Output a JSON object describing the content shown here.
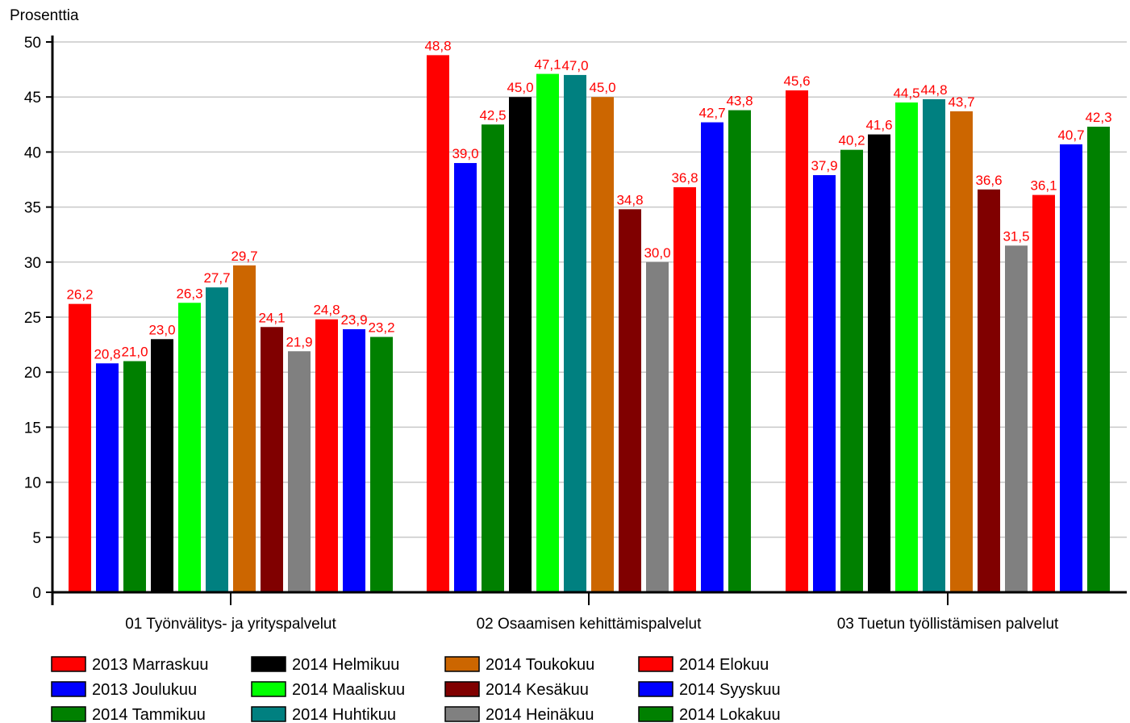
{
  "chart_data": {
    "type": "bar",
    "ylabel": "Prosenttia",
    "ylim": [
      0,
      50
    ],
    "yticks": [
      "0",
      "5",
      "10",
      "15",
      "20",
      "25",
      "30",
      "35",
      "40",
      "45",
      "50"
    ],
    "grid": true,
    "legend_position": "bottom",
    "categories": [
      "01 Työnvälitys- ja yrityspalvelut",
      "02 Osaamisen kehittämispalvelut",
      "03 Tuetun työllistämisen palvelut"
    ],
    "series": [
      {
        "name": "2013 Marraskuu",
        "color": "#ff0000",
        "values": [
          26.2,
          48.8,
          45.6
        ],
        "labels": [
          "26,2",
          "48,8",
          "45,6"
        ]
      },
      {
        "name": "2013 Joulukuu",
        "color": "#0000ff",
        "values": [
          20.8,
          39.0,
          37.9
        ],
        "labels": [
          "20,8",
          "39,0",
          "37,9"
        ]
      },
      {
        "name": "2014 Tammikuu",
        "color": "#008000",
        "values": [
          21.0,
          42.5,
          40.2
        ],
        "labels": [
          "21,0",
          "42,5",
          "40,2"
        ]
      },
      {
        "name": "2014 Helmikuu",
        "color": "#000000",
        "values": [
          23.0,
          45.0,
          41.6
        ],
        "labels": [
          "23,0",
          "45,0",
          "41,6"
        ]
      },
      {
        "name": "2014 Maaliskuu",
        "color": "#00ff00",
        "values": [
          26.3,
          47.1,
          44.5
        ],
        "labels": [
          "26,3",
          "47,1",
          "44,5"
        ]
      },
      {
        "name": "2014 Huhtikuu",
        "color": "#008080",
        "values": [
          27.7,
          47.0,
          44.8
        ],
        "labels": [
          "27,7",
          "47,0",
          "44,8"
        ]
      },
      {
        "name": "2014 Toukokuu",
        "color": "#cc6600",
        "values": [
          29.7,
          45.0,
          43.7
        ],
        "labels": [
          "29,7",
          "45,0",
          "43,7"
        ]
      },
      {
        "name": "2014 Kesäkuu",
        "color": "#800000",
        "values": [
          24.1,
          34.8,
          36.6
        ],
        "labels": [
          "24,1",
          "34,8",
          "36,6"
        ]
      },
      {
        "name": "2014 Heinäkuu",
        "color": "#808080",
        "values": [
          21.9,
          30.0,
          31.5
        ],
        "labels": [
          "21,9",
          "30,0",
          "31,5"
        ]
      },
      {
        "name": "2014 Elokuu",
        "color": "#ff0000",
        "values": [
          24.8,
          36.8,
          36.1
        ],
        "labels": [
          "24,8",
          "36,8",
          "36,1"
        ]
      },
      {
        "name": "2014 Syyskuu",
        "color": "#0000ff",
        "values": [
          23.9,
          42.7,
          40.7
        ],
        "labels": [
          "23,9",
          "42,7",
          "40,7"
        ]
      },
      {
        "name": "2014 Lokakuu",
        "color": "#008000",
        "values": [
          23.2,
          43.8,
          42.3
        ],
        "labels": [
          "23,2",
          "43,8",
          "42,3"
        ]
      }
    ],
    "data_label_color": "#ff0000"
  }
}
